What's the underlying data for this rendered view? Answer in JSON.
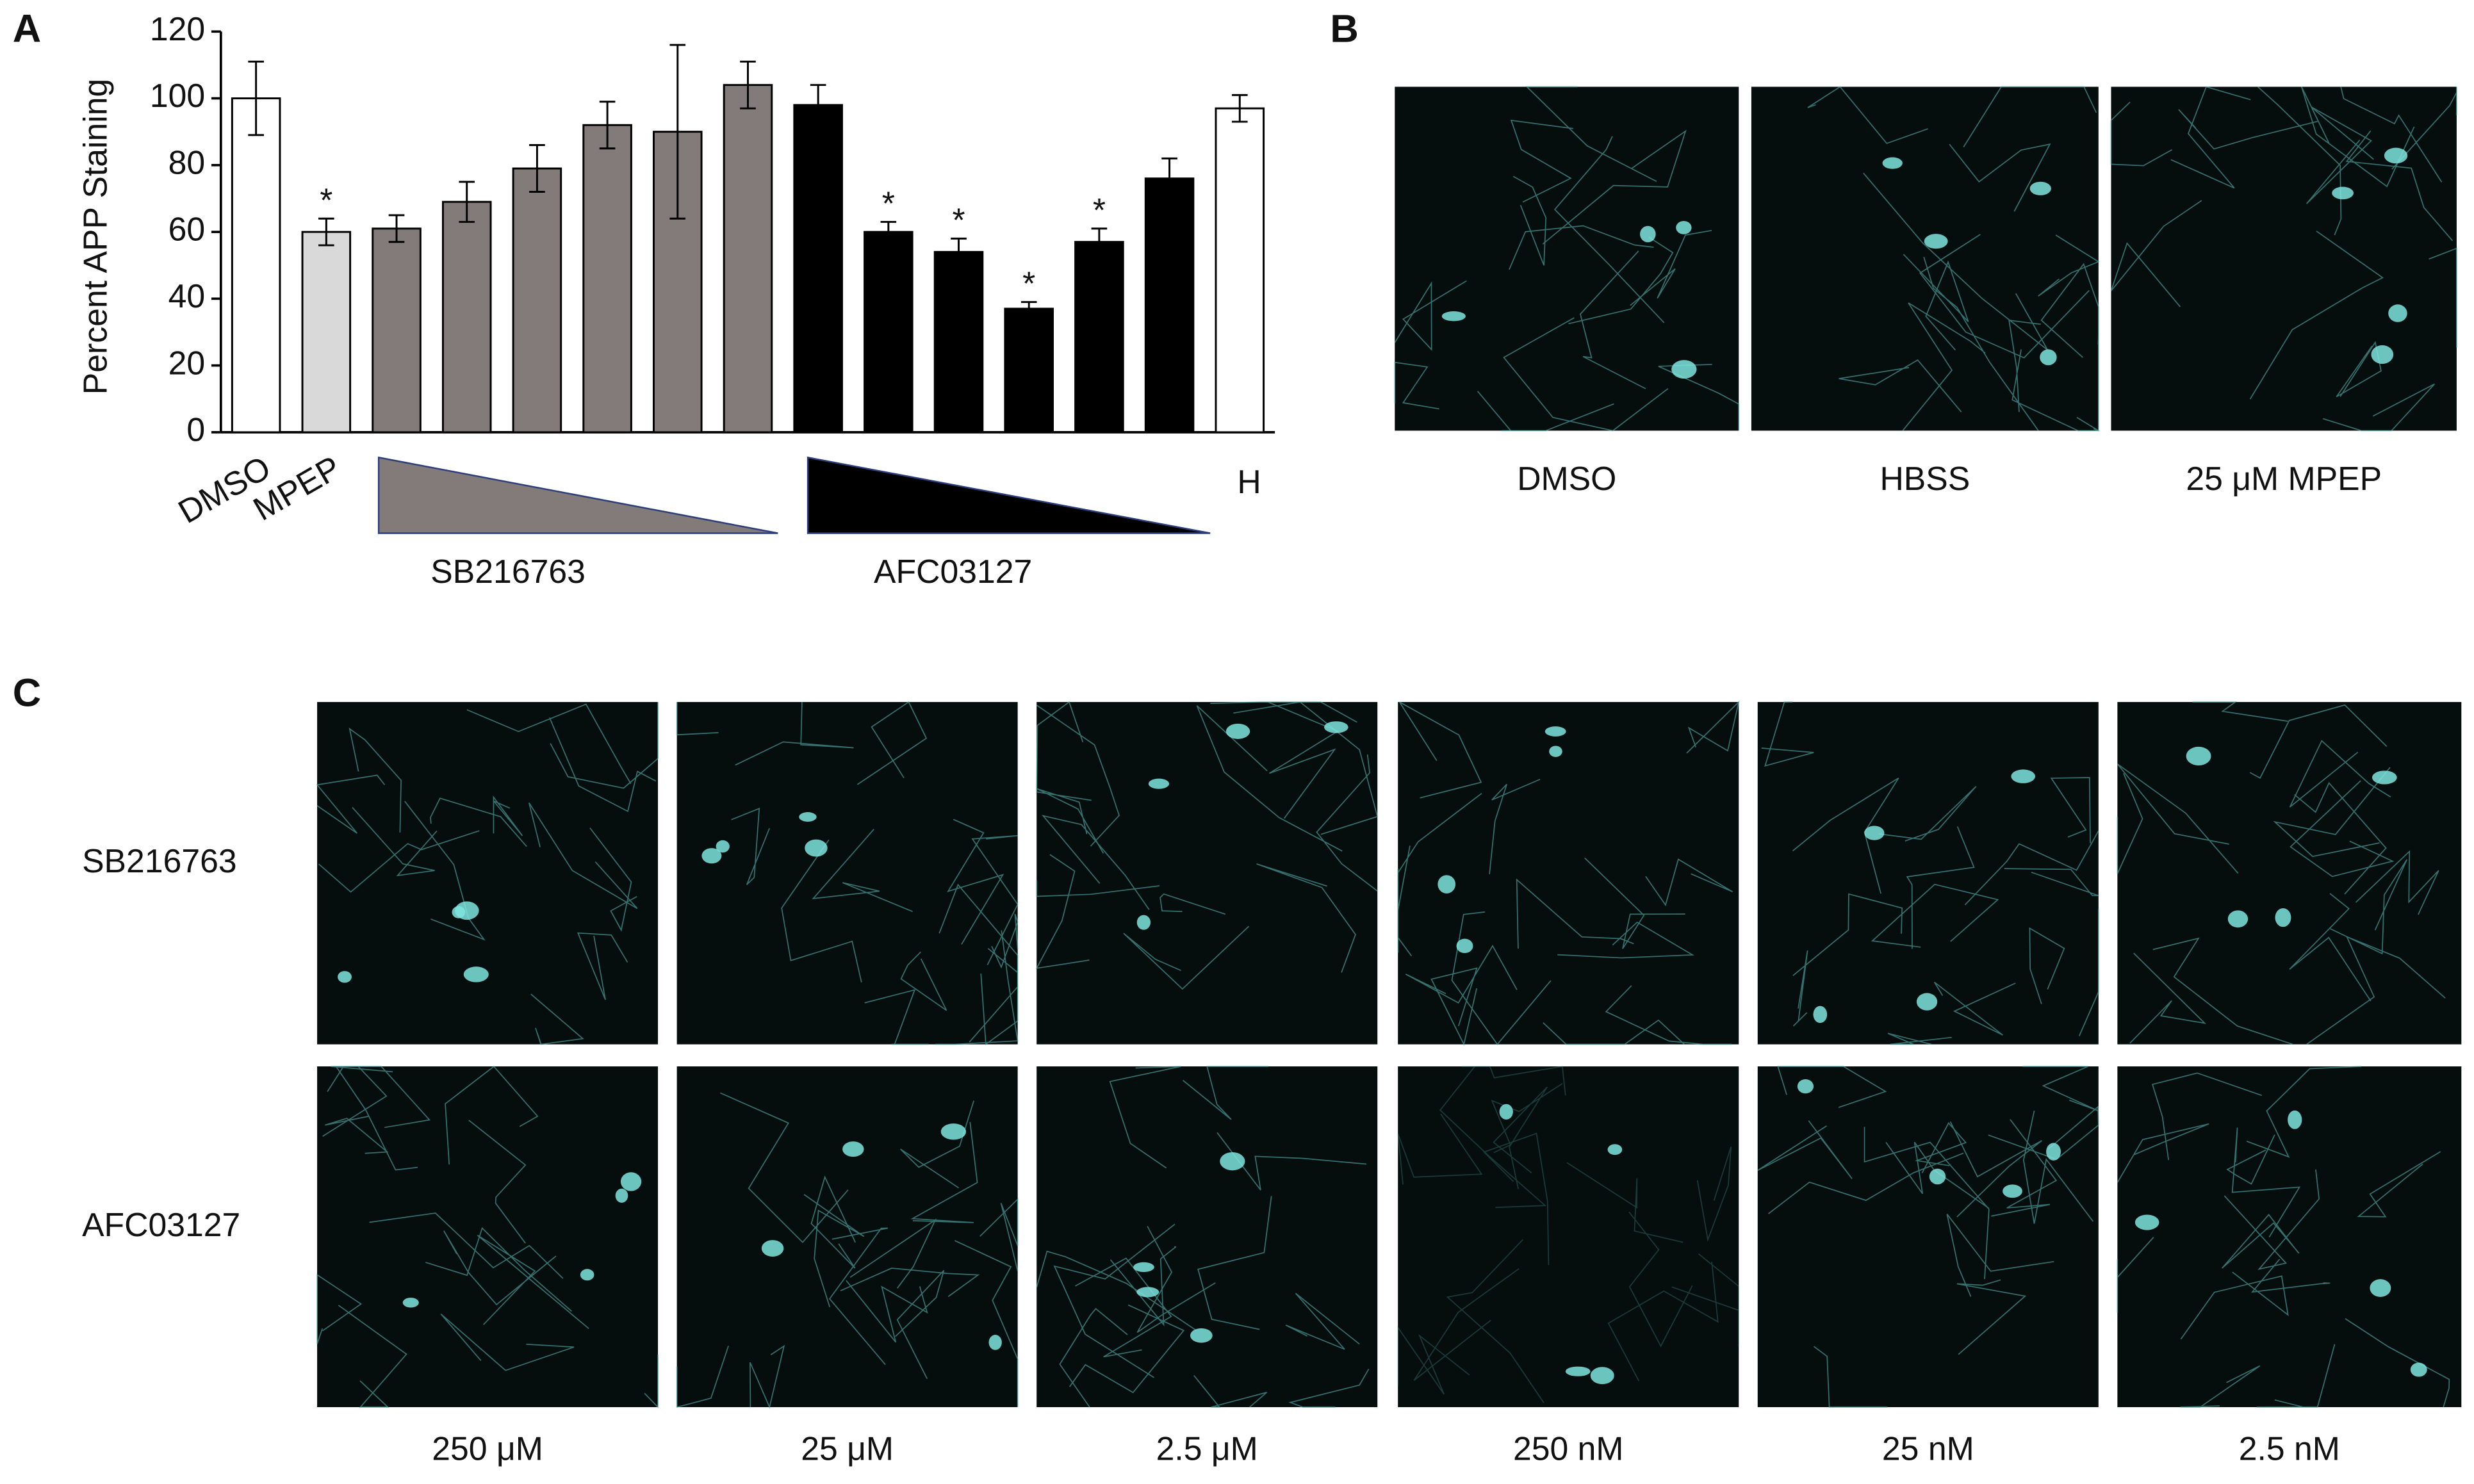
{
  "panel_labels": [
    "A",
    "B",
    "C"
  ],
  "chart_data": {
    "type": "bar",
    "y_label": "Percent APP Staining",
    "categories": [
      "DMSO",
      "MPEP",
      null,
      null,
      null,
      null,
      null,
      null,
      null,
      null,
      null,
      null,
      null,
      null,
      "H"
    ],
    "values": [
      100,
      60,
      61,
      69,
      79,
      92,
      90,
      104,
      98,
      60,
      54,
      37,
      57,
      76,
      97
    ],
    "errors": [
      11,
      4,
      4,
      6,
      7,
      7,
      26,
      7,
      6,
      3,
      4,
      2,
      4,
      6,
      4
    ],
    "colors": [
      "#ffffff",
      "#d9d9d9",
      "#827b7a",
      "#827b7a",
      "#827b7a",
      "#827b7a",
      "#827b7a",
      "#827b7a",
      "#000000",
      "#000000",
      "#000000",
      "#000000",
      "#000000",
      "#000000",
      "#ffffff"
    ],
    "significance": [
      null,
      "*",
      null,
      null,
      null,
      null,
      null,
      null,
      null,
      "*",
      "*",
      "*",
      "*",
      null,
      null
    ],
    "group_labels": [
      "SB216763",
      "AFC03127"
    ],
    "ylim": [
      0,
      120
    ],
    "yticks": [
      0,
      20,
      40,
      60,
      80,
      100,
      120
    ]
  },
  "panel_b": {
    "captions": [
      "DMSO",
      "HBSS",
      "25 μM MPEP"
    ]
  },
  "panel_c": {
    "row_labels": [
      "SB216763",
      "AFC03127"
    ],
    "column_labels": [
      "250 μM",
      "25 μM",
      "2.5 μM",
      "250 nM",
      "25 nM",
      "2.5 nM"
    ]
  }
}
